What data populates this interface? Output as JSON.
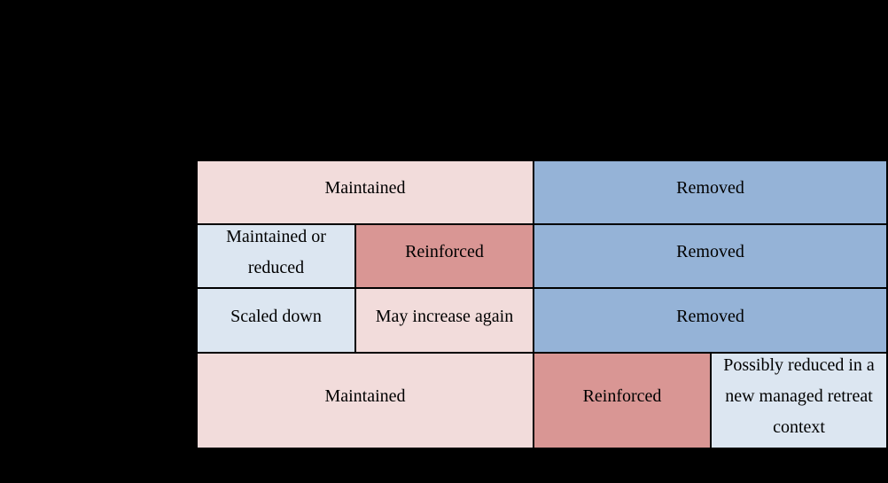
{
  "canvas": {
    "background_color": "#000000",
    "gridline_color": "#000000"
  },
  "table": {
    "description": "4x4 matrix of coastal-defence outcome labels with merged cells",
    "colors": {
      "light_pink": "#F2DCDB",
      "dark_pink": "#D99694",
      "blue": "#95B3D7",
      "light_blue": "#DCE6F1"
    },
    "rows": [
      {
        "cells": [
          {
            "text": "Maintained",
            "bg": "#F2DCDB",
            "colspan": 2
          },
          {
            "text": "Removed",
            "bg": "#95B3D7",
            "colspan": 2
          }
        ]
      },
      {
        "cells": [
          {
            "text": "Maintained or reduced",
            "bg": "#DCE6F1",
            "colspan": 1
          },
          {
            "text": "Reinforced",
            "bg": "#D99694",
            "colspan": 1
          },
          {
            "text": "Removed",
            "bg": "#95B3D7",
            "colspan": 2
          }
        ]
      },
      {
        "cells": [
          {
            "text": "Scaled down",
            "bg": "#DCE6F1",
            "colspan": 1
          },
          {
            "text": "May increase again",
            "bg": "#F2DCDB",
            "colspan": 1
          },
          {
            "text": "Removed",
            "bg": "#95B3D7",
            "colspan": 2
          }
        ]
      },
      {
        "cells": [
          {
            "text": "Maintained",
            "bg": "#F2DCDB",
            "colspan": 2
          },
          {
            "text": "Reinforced",
            "bg": "#D99694",
            "colspan": 1
          },
          {
            "text": "Possibly reduced in a new managed retreat context",
            "bg": "#DCE6F1",
            "colspan": 1
          }
        ]
      }
    ]
  }
}
